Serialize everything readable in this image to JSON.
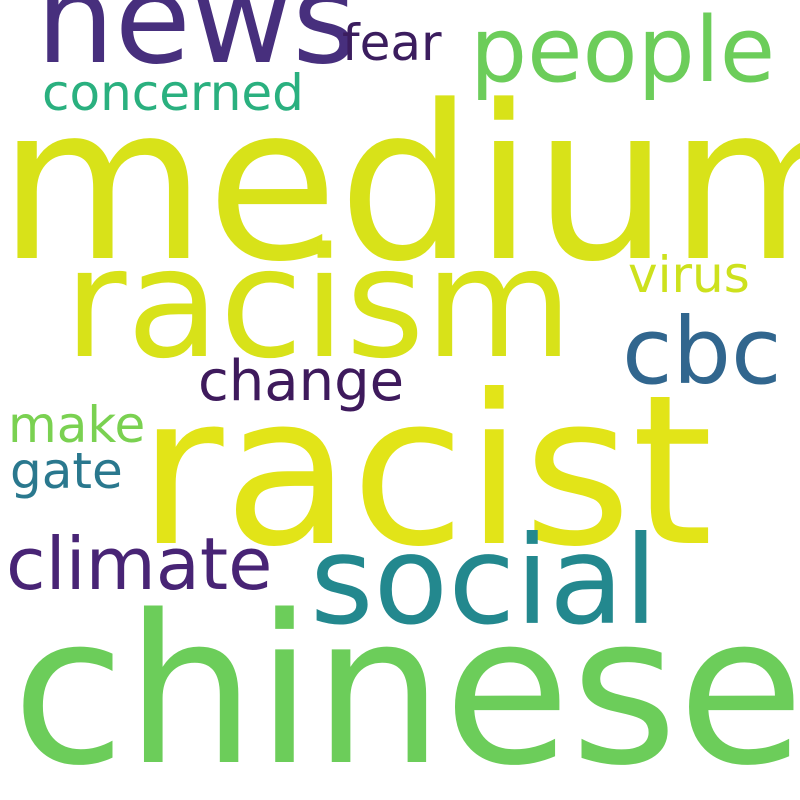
{
  "words": [
    {
      "text": "medium",
      "color": "#d8e219"
    },
    {
      "text": "racist",
      "color": "#e2e418"
    },
    {
      "text": "chinese",
      "color": "#6ccd5a"
    },
    {
      "text": "racism",
      "color": "#d8e219"
    },
    {
      "text": "news",
      "color": "#472f7d"
    },
    {
      "text": "social",
      "color": "#23888e"
    },
    {
      "text": "people",
      "color": "#6ccd5a"
    },
    {
      "text": "cbc",
      "color": "#31668e"
    },
    {
      "text": "climate",
      "color": "#482475"
    },
    {
      "text": "change",
      "color": "#3e1a5c"
    },
    {
      "text": "virus",
      "color": "#cde11d"
    },
    {
      "text": "concerned",
      "color": "#2ab07f"
    },
    {
      "text": "fear",
      "color": "#3b1d5e"
    },
    {
      "text": "make",
      "color": "#7ad151"
    },
    {
      "text": "gate",
      "color": "#2a788e"
    }
  ]
}
